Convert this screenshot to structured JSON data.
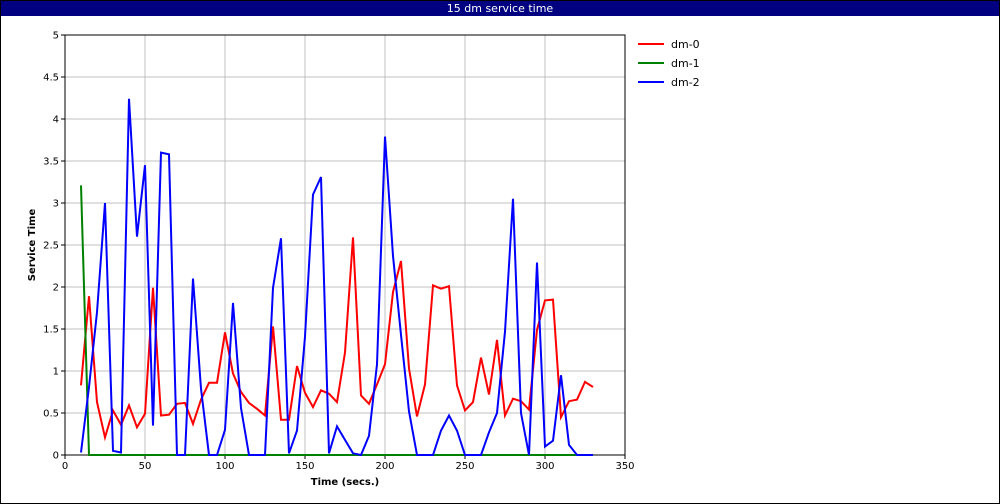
{
  "window": {
    "title": "15 dm service time"
  },
  "chart_data": {
    "type": "line",
    "title": "15 dm service time",
    "xlabel": "Time (secs.)",
    "ylabel": "Service Time",
    "xlim": [
      0,
      350
    ],
    "ylim": [
      0,
      5
    ],
    "xticks": [
      0,
      50,
      100,
      150,
      200,
      250,
      300,
      350
    ],
    "yticks": [
      0,
      0.5,
      1,
      1.5,
      2,
      2.5,
      3,
      3.5,
      4,
      4.5,
      5
    ],
    "xtick_labels": [
      "0",
      "50",
      "100",
      "150",
      "200",
      "250",
      "300",
      "350"
    ],
    "ytick_labels": [
      "0",
      "0.5",
      "1",
      "1.5",
      "2",
      "2.5",
      "3",
      "3.5",
      "4",
      "4.5",
      "5"
    ],
    "grid": true,
    "legend": "top-right, outside plot",
    "series": [
      {
        "name": "dm-0",
        "color": "#ff0000",
        "points": [
          [
            10,
            0.83
          ],
          [
            15,
            1.89
          ],
          [
            20,
            0.63
          ],
          [
            25,
            0.21
          ],
          [
            30,
            0.53
          ],
          [
            35,
            0.36
          ],
          [
            40,
            0.59
          ],
          [
            45,
            0.33
          ],
          [
            50,
            0.49
          ],
          [
            55,
            1.99
          ],
          [
            60,
            0.47
          ],
          [
            65,
            0.48
          ],
          [
            70,
            0.61
          ],
          [
            75,
            0.62
          ],
          [
            80,
            0.37
          ],
          [
            85,
            0.66
          ],
          [
            90,
            0.86
          ],
          [
            95,
            0.86
          ],
          [
            100,
            1.46
          ],
          [
            105,
            0.97
          ],
          [
            110,
            0.75
          ],
          [
            115,
            0.62
          ],
          [
            120,
            0.55
          ],
          [
            125,
            0.47
          ],
          [
            130,
            1.53
          ],
          [
            135,
            0.42
          ],
          [
            140,
            0.42
          ],
          [
            145,
            1.06
          ],
          [
            150,
            0.74
          ],
          [
            155,
            0.57
          ],
          [
            160,
            0.77
          ],
          [
            165,
            0.73
          ],
          [
            170,
            0.63
          ],
          [
            175,
            1.22
          ],
          [
            180,
            2.59
          ],
          [
            185,
            0.71
          ],
          [
            190,
            0.61
          ],
          [
            195,
            0.84
          ],
          [
            200,
            1.08
          ],
          [
            205,
            1.94
          ],
          [
            210,
            2.31
          ],
          [
            215,
            1.03
          ],
          [
            220,
            0.46
          ],
          [
            225,
            0.84
          ],
          [
            230,
            2.02
          ],
          [
            235,
            1.98
          ],
          [
            240,
            2.01
          ],
          [
            245,
            0.83
          ],
          [
            250,
            0.53
          ],
          [
            255,
            0.63
          ],
          [
            260,
            1.16
          ],
          [
            265,
            0.72
          ],
          [
            270,
            1.37
          ],
          [
            275,
            0.47
          ],
          [
            280,
            0.67
          ],
          [
            285,
            0.64
          ],
          [
            290,
            0.54
          ],
          [
            295,
            1.49
          ],
          [
            300,
            1.84
          ],
          [
            305,
            1.85
          ],
          [
            310,
            0.45
          ],
          [
            315,
            0.64
          ],
          [
            320,
            0.66
          ],
          [
            325,
            0.87
          ],
          [
            330,
            0.81
          ]
        ]
      },
      {
        "name": "dm-1",
        "color": "#008000",
        "points": [
          [
            10,
            3.21
          ],
          [
            15,
            0
          ],
          [
            20,
            0
          ],
          [
            25,
            0
          ],
          [
            30,
            0
          ],
          [
            35,
            0
          ],
          [
            40,
            0
          ],
          [
            45,
            0
          ],
          [
            50,
            0
          ],
          [
            55,
            0
          ],
          [
            60,
            0
          ],
          [
            65,
            0
          ],
          [
            70,
            0
          ],
          [
            75,
            0
          ],
          [
            80,
            0
          ],
          [
            85,
            0
          ],
          [
            90,
            0
          ],
          [
            95,
            0
          ],
          [
            100,
            0
          ],
          [
            105,
            0
          ],
          [
            110,
            0
          ],
          [
            115,
            0
          ],
          [
            120,
            0
          ],
          [
            125,
            0
          ],
          [
            130,
            0
          ],
          [
            135,
            0
          ],
          [
            140,
            0
          ],
          [
            145,
            0
          ],
          [
            150,
            0
          ],
          [
            155,
            0
          ],
          [
            160,
            0
          ],
          [
            165,
            0
          ],
          [
            170,
            0
          ],
          [
            175,
            0
          ],
          [
            180,
            0
          ],
          [
            185,
            0
          ],
          [
            190,
            0
          ],
          [
            195,
            0
          ],
          [
            200,
            0
          ],
          [
            205,
            0
          ],
          [
            210,
            0
          ],
          [
            215,
            0
          ],
          [
            220,
            0
          ],
          [
            225,
            0
          ],
          [
            230,
            0
          ],
          [
            235,
            0
          ],
          [
            240,
            0
          ],
          [
            245,
            0
          ],
          [
            250,
            0
          ],
          [
            255,
            0
          ],
          [
            260,
            0
          ],
          [
            265,
            0
          ],
          [
            270,
            0
          ],
          [
            275,
            0
          ],
          [
            280,
            0
          ],
          [
            285,
            0
          ],
          [
            290,
            0
          ],
          [
            295,
            0
          ],
          [
            300,
            0
          ],
          [
            305,
            0
          ],
          [
            310,
            0
          ],
          [
            315,
            0
          ],
          [
            320,
            0
          ],
          [
            325,
            0
          ],
          [
            330,
            0
          ]
        ]
      },
      {
        "name": "dm-2",
        "color": "#0000ff",
        "points": [
          [
            10,
            0.03
          ],
          [
            15,
            0.81
          ],
          [
            20,
            1.7
          ],
          [
            25,
            3.0
          ],
          [
            30,
            0.05
          ],
          [
            35,
            0.03
          ],
          [
            40,
            4.24
          ],
          [
            45,
            2.6
          ],
          [
            50,
            3.45
          ],
          [
            55,
            0.35
          ],
          [
            60,
            3.6
          ],
          [
            65,
            3.58
          ],
          [
            70,
            0
          ],
          [
            75,
            0
          ],
          [
            80,
            2.1
          ],
          [
            85,
            0.79
          ],
          [
            90,
            0
          ],
          [
            95,
            0
          ],
          [
            100,
            0.3
          ],
          [
            105,
            1.81
          ],
          [
            110,
            0.56
          ],
          [
            115,
            0
          ],
          [
            120,
            0
          ],
          [
            125,
            0
          ],
          [
            130,
            1.99
          ],
          [
            135,
            2.58
          ],
          [
            140,
            0.02
          ],
          [
            145,
            0.29
          ],
          [
            150,
            1.41
          ],
          [
            155,
            3.1
          ],
          [
            160,
            3.31
          ],
          [
            165,
            0.02
          ],
          [
            170,
            0.34
          ],
          [
            175,
            0.18
          ],
          [
            180,
            0.02
          ],
          [
            185,
            0
          ],
          [
            190,
            0.23
          ],
          [
            195,
            1.08
          ],
          [
            200,
            3.79
          ],
          [
            205,
            2.37
          ],
          [
            210,
            1.43
          ],
          [
            215,
            0.52
          ],
          [
            220,
            0
          ],
          [
            225,
            0
          ],
          [
            230,
            0
          ],
          [
            235,
            0.29
          ],
          [
            240,
            0.47
          ],
          [
            245,
            0.29
          ],
          [
            250,
            0
          ],
          [
            255,
            0
          ],
          [
            260,
            0
          ],
          [
            265,
            0.27
          ],
          [
            270,
            0.5
          ],
          [
            275,
            1.47
          ],
          [
            280,
            3.05
          ],
          [
            285,
            0.5
          ],
          [
            290,
            0
          ],
          [
            295,
            2.29
          ],
          [
            300,
            0.1
          ],
          [
            305,
            0.17
          ],
          [
            310,
            0.95
          ],
          [
            315,
            0.12
          ],
          [
            320,
            0
          ],
          [
            325,
            0
          ],
          [
            330,
            0
          ]
        ]
      }
    ]
  }
}
